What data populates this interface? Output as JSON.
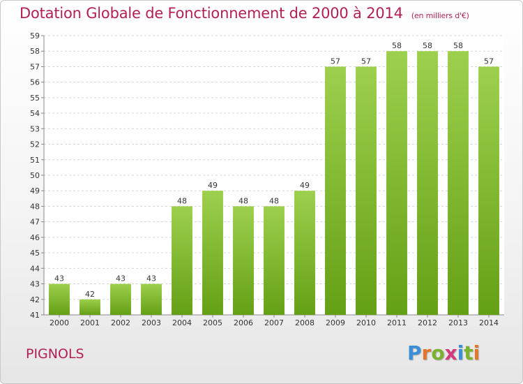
{
  "header": {
    "title": "Dotation Globale de Fonctionnement de 2000 à 2014",
    "unit": "(en milliers d'€)"
  },
  "footer": {
    "town": "PIGNOLS",
    "logo_letters": [
      "P",
      "r",
      "o",
      "x",
      "i",
      "t",
      "i"
    ],
    "logo_colors": [
      "#3a8fd6",
      "#e2762b",
      "#7bb32e",
      "#d23a7e",
      "#3a8fd6",
      "#7bb32e",
      "#e2762b"
    ]
  },
  "chart_data": {
    "type": "bar",
    "categories": [
      "2000",
      "2001",
      "2002",
      "2003",
      "2004",
      "2005",
      "2006",
      "2007",
      "2008",
      "2009",
      "2010",
      "2011",
      "2012",
      "2013",
      "2014"
    ],
    "values": [
      43,
      42,
      43,
      43,
      48,
      49,
      48,
      48,
      49,
      57,
      57,
      58,
      58,
      58,
      57
    ],
    "title": "Dotation Globale de Fonctionnement de 2000 à 2014",
    "subtitle": "(en milliers d'€)",
    "xlabel": "",
    "ylabel": "",
    "ylim": [
      41,
      59
    ],
    "yticks": [
      41,
      42,
      43,
      44,
      45,
      46,
      47,
      48,
      49,
      50,
      51,
      52,
      53,
      54,
      55,
      56,
      57,
      58,
      59
    ],
    "grid": true,
    "legend": "none",
    "bar_color_top": "#9dd04d",
    "bar_color_bottom": "#64a016",
    "title_color": "#b21f58"
  }
}
